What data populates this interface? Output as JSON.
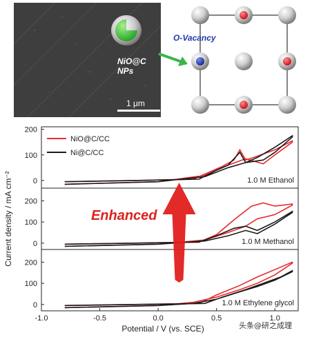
{
  "figure": {
    "np_label": "NiO@C NPs",
    "scale_label": "1 μm",
    "vacancy_label": "O-Vacancy",
    "enhanced_label": "Enhanced",
    "watermark": "头条@研之成理"
  },
  "colors": {
    "red": "#e8282b",
    "black": "#1a1a1a",
    "arrow_red": "#e0201e",
    "green_arrow": "#3cb54a",
    "oxygen_blue": "#2b3fa0",
    "vacancy_text": "#1f3aa8"
  },
  "chart_data": {
    "type": "line",
    "xlabel": "Potential / V (vs. SCE)",
    "ylabel": "Current density / mA cm⁻²",
    "xlim": [
      -1.0,
      1.2
    ],
    "xticks": [
      "-1.0",
      "-0.5",
      "0.0",
      "0.5",
      "1.0"
    ],
    "legend": [
      "NiO@C/CC",
      "Ni@C/CC"
    ],
    "panels": [
      {
        "label": "1.0 M Ethanol",
        "ylim": [
          -30,
          210
        ],
        "yticks": [
          "0",
          "100",
          "200"
        ],
        "series": [
          {
            "name": "NiO@C/CC",
            "forward": [
              [
                -0.8,
                -5
              ],
              [
                -0.2,
                0
              ],
              [
                0.3,
                5
              ],
              [
                0.45,
                35
              ],
              [
                0.55,
                55
              ],
              [
                0.65,
                80
              ],
              [
                0.7,
                120
              ],
              [
                0.75,
                80
              ],
              [
                0.85,
                95
              ],
              [
                1.0,
                120
              ],
              [
                1.15,
                155
              ]
            ],
            "reverse": [
              [
                1.15,
                150
              ],
              [
                1.0,
                100
              ],
              [
                0.9,
                65
              ],
              [
                0.75,
                85
              ],
              [
                0.6,
                60
              ],
              [
                0.4,
                20
              ],
              [
                0.0,
                -5
              ],
              [
                -0.8,
                -15
              ]
            ]
          },
          {
            "name": "Ni@C/CC",
            "forward": [
              [
                -0.8,
                -5
              ],
              [
                -0.2,
                0
              ],
              [
                0.35,
                5
              ],
              [
                0.5,
                40
              ],
              [
                0.6,
                60
              ],
              [
                0.7,
                110
              ],
              [
                0.75,
                70
              ],
              [
                0.85,
                90
              ],
              [
                1.0,
                130
              ],
              [
                1.15,
                175
              ]
            ],
            "reverse": [
              [
                1.15,
                170
              ],
              [
                1.0,
                110
              ],
              [
                0.9,
                80
              ],
              [
                0.75,
                70
              ],
              [
                0.6,
                50
              ],
              [
                0.4,
                15
              ],
              [
                0.0,
                -5
              ],
              [
                -0.8,
                -15
              ]
            ]
          }
        ]
      },
      {
        "label": "1.0 M Methanol",
        "ylim": [
          -30,
          260
        ],
        "yticks": [
          "0",
          "100",
          "200"
        ],
        "series": [
          {
            "name": "NiO@C/CC",
            "forward": [
              [
                -0.8,
                -5
              ],
              [
                -0.2,
                0
              ],
              [
                0.35,
                5
              ],
              [
                0.5,
                40
              ],
              [
                0.65,
                110
              ],
              [
                0.8,
                175
              ],
              [
                0.9,
                190
              ],
              [
                1.0,
                175
              ],
              [
                1.15,
                185
              ]
            ],
            "reverse": [
              [
                1.15,
                180
              ],
              [
                1.0,
                135
              ],
              [
                0.85,
                115
              ],
              [
                0.75,
                80
              ],
              [
                0.6,
                50
              ],
              [
                0.4,
                15
              ],
              [
                0.0,
                -5
              ],
              [
                -0.8,
                -15
              ]
            ]
          },
          {
            "name": "Ni@C/CC",
            "forward": [
              [
                -0.8,
                -5
              ],
              [
                -0.2,
                0
              ],
              [
                0.35,
                5
              ],
              [
                0.5,
                35
              ],
              [
                0.65,
                70
              ],
              [
                0.75,
                80
              ],
              [
                0.85,
                60
              ],
              [
                1.0,
                100
              ],
              [
                1.15,
                150
              ]
            ],
            "reverse": [
              [
                1.15,
                145
              ],
              [
                1.0,
                90
              ],
              [
                0.85,
                45
              ],
              [
                0.75,
                60
              ],
              [
                0.6,
                35
              ],
              [
                0.4,
                10
              ],
              [
                0.0,
                -5
              ],
              [
                -0.8,
                -15
              ]
            ]
          }
        ]
      },
      {
        "label": "1.0 M Ethylene glycol",
        "ylim": [
          -30,
          260
        ],
        "yticks": [
          "0",
          "100",
          "200"
        ],
        "series": [
          {
            "name": "NiO@C/CC",
            "forward": [
              [
                -0.8,
                -5
              ],
              [
                -0.2,
                0
              ],
              [
                0.35,
                5
              ],
              [
                0.5,
                45
              ],
              [
                0.7,
                90
              ],
              [
                0.85,
                130
              ],
              [
                1.0,
                165
              ],
              [
                1.15,
                200
              ]
            ],
            "reverse": [
              [
                1.15,
                195
              ],
              [
                1.0,
                140
              ],
              [
                0.85,
                100
              ],
              [
                0.7,
                70
              ],
              [
                0.5,
                35
              ],
              [
                0.3,
                10
              ],
              [
                0.0,
                -5
              ],
              [
                -0.8,
                -15
              ]
            ]
          },
          {
            "name": "Ni@C/CC",
            "forward": [
              [
                -0.8,
                -5
              ],
              [
                -0.2,
                0
              ],
              [
                0.4,
                5
              ],
              [
                0.55,
                35
              ],
              [
                0.75,
                70
              ],
              [
                0.9,
                100
              ],
              [
                1.05,
                130
              ],
              [
                1.15,
                160
              ]
            ],
            "reverse": [
              [
                1.15,
                155
              ],
              [
                1.0,
                115
              ],
              [
                0.85,
                85
              ],
              [
                0.7,
                60
              ],
              [
                0.5,
                25
              ],
              [
                0.3,
                5
              ],
              [
                0.0,
                -5
              ],
              [
                -0.8,
                -15
              ]
            ]
          }
        ]
      }
    ]
  }
}
